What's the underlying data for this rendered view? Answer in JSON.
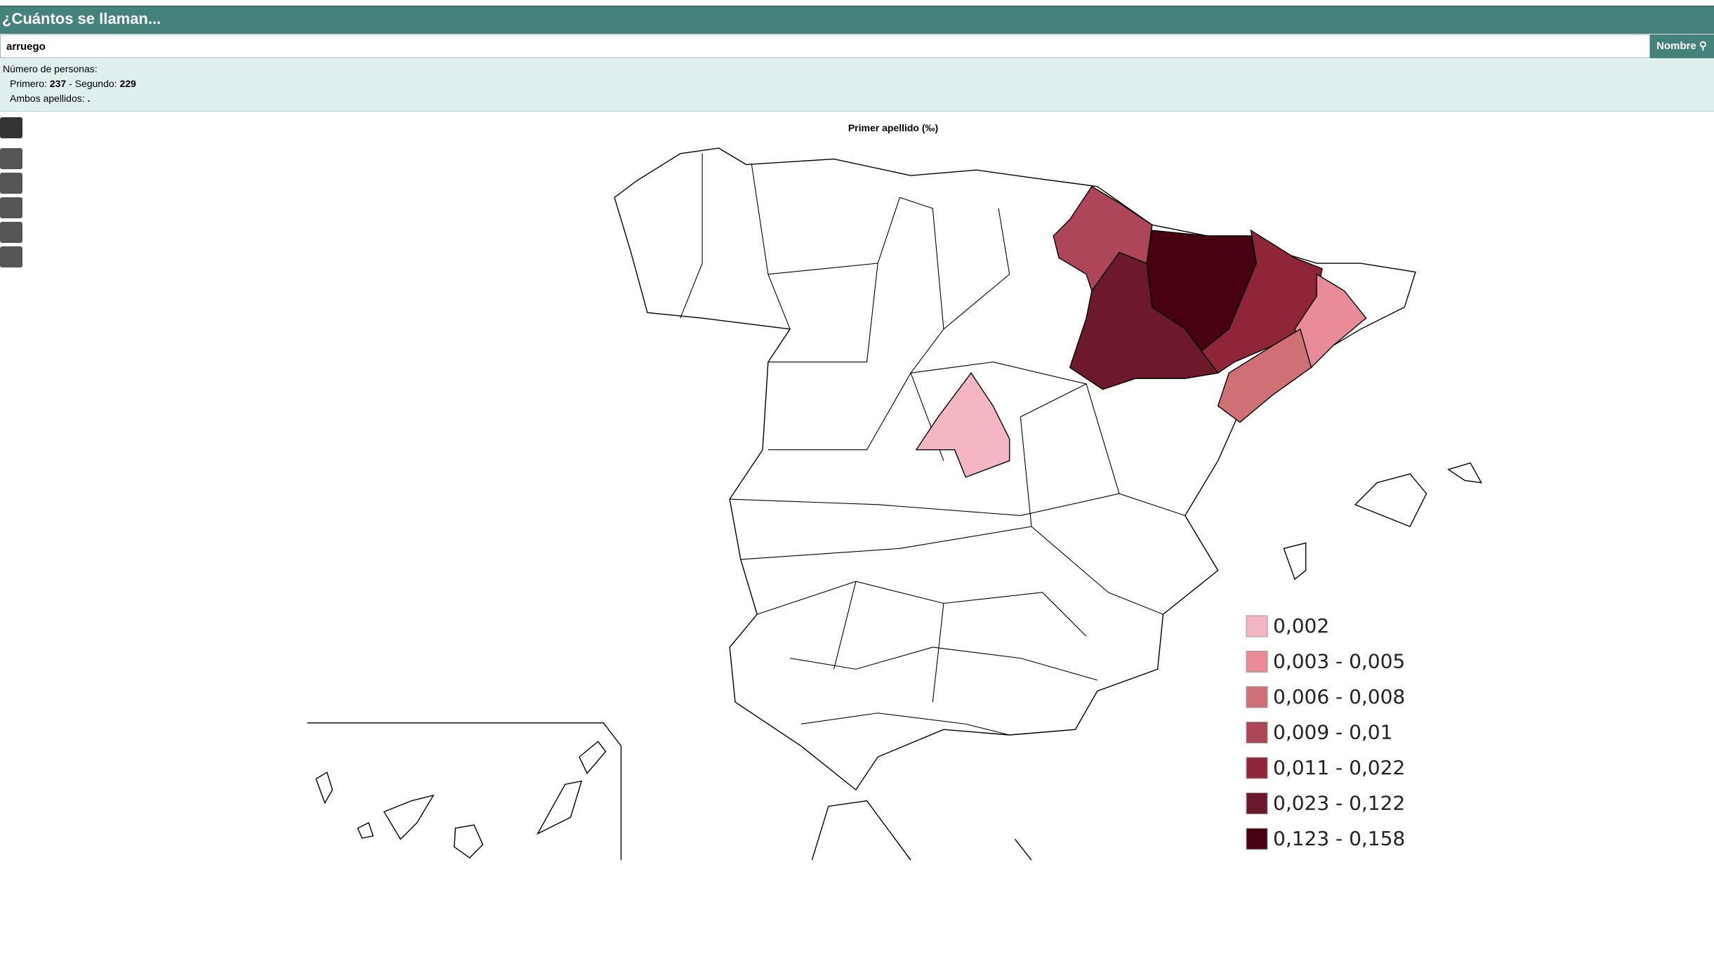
{
  "header": {
    "title": "¿Cuántos se llaman..."
  },
  "search": {
    "value": "arruego",
    "button": "Nombre"
  },
  "info": {
    "heading": "Número de personas:",
    "first_label": "Primero:",
    "first": 237,
    "second_label": "Segundo:",
    "second": 229,
    "both_label": "Ambos apellidos:",
    "both": "."
  },
  "map": {
    "title": "Primer apellido (‰)",
    "legend": [
      {
        "label": "0,002",
        "color": "#f4b6c2"
      },
      {
        "label": "0,003 - 0,005",
        "color": "#e98b98"
      },
      {
        "label": "0,006 - 0,008",
        "color": "#cf7174"
      },
      {
        "label": "0,009 - 0,01",
        "color": "#ad4658"
      },
      {
        "label": "0,011 - 0,022",
        "color": "#8e2538"
      },
      {
        "label": "0,023 - 0,122",
        "color": "#6c1a2b"
      },
      {
        "label": "0,123 - 0,158",
        "color": "#470010"
      }
    ]
  }
}
